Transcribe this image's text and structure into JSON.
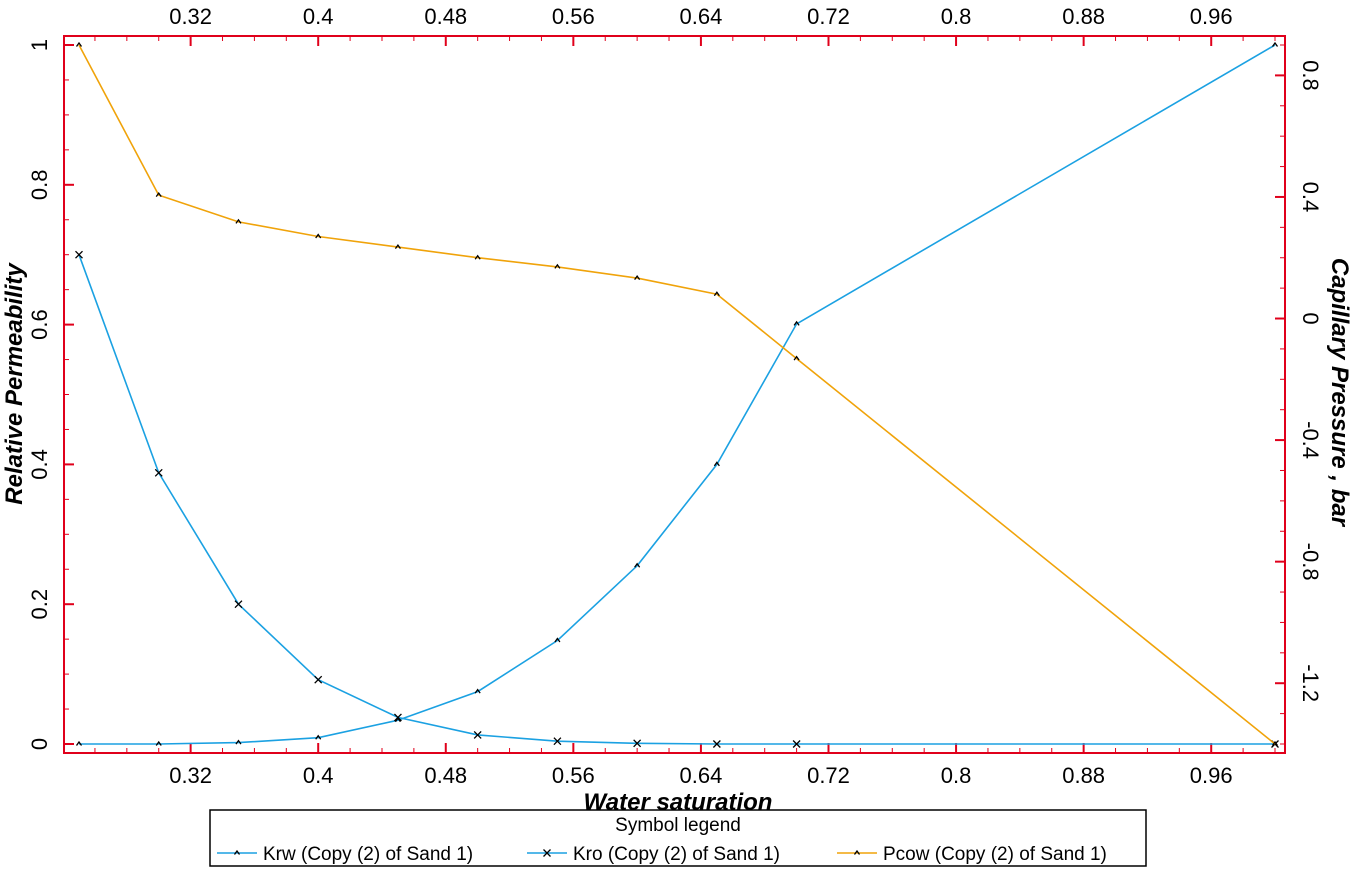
{
  "chart_data": {
    "type": "line",
    "xlabel": "Water saturation",
    "ylabel": "Relative Permeability",
    "y2label": "Capillary Pressure , bar",
    "xlim": [
      0.25,
      1.0
    ],
    "ylim": [
      0,
      1.0
    ],
    "y2lim": [
      -1.4,
      0.9
    ],
    "x_ticks": [
      0.32,
      0.4,
      0.48,
      0.56,
      0.64,
      0.72,
      0.8,
      0.88,
      0.96
    ],
    "x_tick_labels": [
      "0.32",
      "0.4",
      "0.48",
      "0.56",
      "0.64",
      "0.72",
      "0.8",
      "0.88",
      "0.96"
    ],
    "y_ticks": [
      0,
      0.2,
      0.4,
      0.6,
      0.8,
      1
    ],
    "y_tick_labels": [
      "0",
      "0.2",
      "0.4",
      "0.6",
      "0.8",
      "1"
    ],
    "y2_ticks": [
      -1.2,
      -0.8,
      -0.4,
      0,
      0.4,
      0.8
    ],
    "y2_tick_labels": [
      "-1.2",
      "-0.8",
      "-0.4",
      "0",
      "0.4",
      "0.8"
    ],
    "legend_title": "Symbol legend",
    "legend_position": "bottom",
    "frame_color": "#e0001b",
    "grid": false,
    "series": [
      {
        "name": "Krw (Copy (2) of Sand 1)",
        "axis": "left",
        "color": "#1ba1e2",
        "marker": "dot",
        "x": [
          0.25,
          0.3,
          0.35,
          0.4,
          0.45,
          0.5,
          0.55,
          0.6,
          0.65,
          0.7,
          1.0
        ],
        "values": [
          0,
          0,
          0.002,
          0.009,
          0.034,
          0.075,
          0.148,
          0.255,
          0.4,
          0.601,
          1.0
        ]
      },
      {
        "name": "Kro (Copy (2) of Sand 1)",
        "axis": "left",
        "color": "#1ba1e2",
        "marker": "x",
        "x": [
          0.25,
          0.3,
          0.35,
          0.4,
          0.45,
          0.5,
          0.55,
          0.6,
          0.65,
          0.7,
          1.0
        ],
        "values": [
          0.7,
          0.388,
          0.2,
          0.092,
          0.038,
          0.013,
          0.004,
          0.001,
          0.0,
          0.0,
          0.0
        ]
      },
      {
        "name": "Pcow (Copy (2) of Sand 1)",
        "axis": "right",
        "color": "#f0a30a",
        "marker": "dot",
        "x": [
          0.25,
          0.3,
          0.35,
          0.4,
          0.45,
          0.5,
          0.55,
          0.6,
          0.65,
          0.7,
          1.0
        ],
        "values": [
          0.9,
          0.406,
          0.318,
          0.27,
          0.235,
          0.2,
          0.17,
          0.133,
          0.08,
          -0.132,
          -1.4
        ]
      }
    ]
  }
}
